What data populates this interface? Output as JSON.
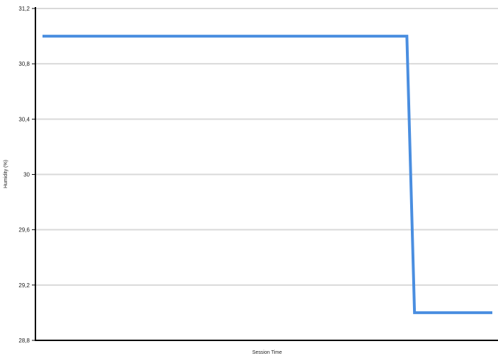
{
  "chart_data": {
    "type": "line",
    "title": "",
    "xlabel": "Session Time",
    "ylabel": "Humidity (%)",
    "ylim": [
      28.8,
      31.2
    ],
    "yticks": [
      28.8,
      29.2,
      29.6,
      30,
      30.4,
      30.8,
      31.2
    ],
    "ytick_labels": [
      "28,8",
      "29,2",
      "29,6",
      "30",
      "30,4",
      "30,8",
      "31,2"
    ],
    "grid": true,
    "legend": "none",
    "series": [
      {
        "color": "#4a8ee0",
        "values": [
          31,
          31,
          29,
          29
        ]
      }
    ],
    "x_points": [
      0,
      0.81,
      0.827,
      1.0
    ]
  },
  "colors": {
    "axis": "#000000",
    "grid": "#d9d9d9",
    "line": "#4a8ee0"
  }
}
